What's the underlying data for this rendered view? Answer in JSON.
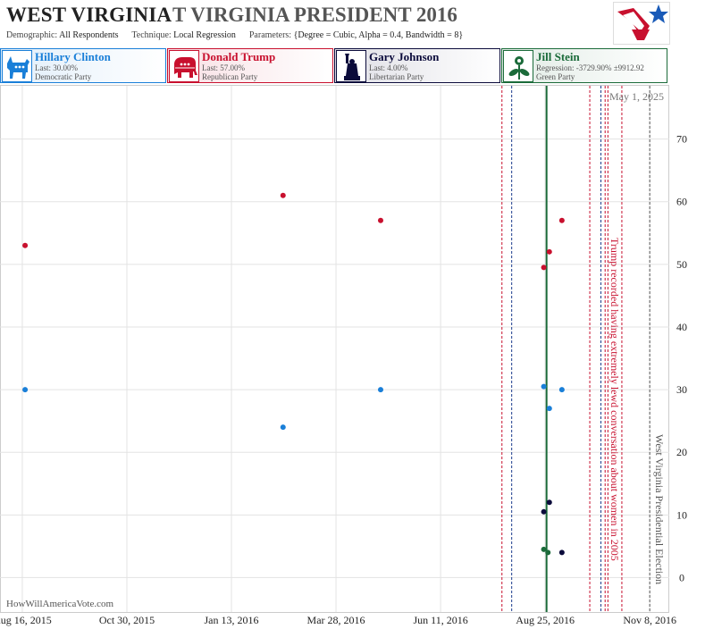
{
  "header": {
    "state": "WEST VIRGINIA",
    "race": "T VIRGINIA PRESIDENT 2016",
    "demographic_label": "Demographic:",
    "demographic_value": "All Respondents",
    "technique_label": "Technique:",
    "technique_value": "Local Regression",
    "parameters_label": "Parameters:",
    "parameters_value": "{Degree = Cubic, Alpha = 0.4, Bandwidth = 8}"
  },
  "logo_icon": "flag-star-logo-icon",
  "candidates": [
    {
      "name": "Hillary Clinton",
      "last": "Last: 30.00%",
      "party": "Democratic Party",
      "color": "#1a7fd8",
      "icon": "donkey-icon"
    },
    {
      "name": "Donald Trump",
      "last": "Last: 57.00%",
      "party": "Republican Party",
      "color": "#c8102e",
      "icon": "elephant-icon"
    },
    {
      "name": "Gary Johnson",
      "last": "Last: 4.00%",
      "party": "Libertarian Party",
      "color": "#0b0b3b",
      "icon": "statue-of-liberty-icon"
    },
    {
      "name": "Jill Stein",
      "last": "Regression: -3729.90% ±9912.92",
      "party": "Green Party",
      "color": "#1b6b3a",
      "icon": "flower-icon"
    }
  ],
  "watermark": "HowWillAmericaVote.com",
  "chart_data": {
    "type": "scatter",
    "x_axis": {
      "type": "date",
      "range": [
        "2015-07-31",
        "2016-11-22"
      ],
      "ticks": [
        {
          "date": "2015-08-16",
          "label": "Aug 16, 2015"
        },
        {
          "date": "2015-10-30",
          "label": "Oct 30, 2015"
        },
        {
          "date": "2016-01-13",
          "label": "Jan 13, 2016"
        },
        {
          "date": "2016-03-28",
          "label": "Mar 28, 2016"
        },
        {
          "date": "2016-06-11",
          "label": "Jun 11, 2016"
        },
        {
          "date": "2016-08-25",
          "label": "Aug 25, 2016"
        },
        {
          "date": "2016-11-08",
          "label": "Nov 8, 2016"
        }
      ]
    },
    "y_axis": {
      "range": [
        -5.5,
        78.5
      ],
      "ticks": [
        0,
        10,
        20,
        30,
        40,
        50,
        60,
        70
      ],
      "position": "right"
    },
    "grid": true,
    "series": [
      {
        "name": "Hillary Clinton",
        "color": "#1a7fd8",
        "points": [
          {
            "x": "2015-08-18",
            "y": 30
          },
          {
            "x": "2016-02-19",
            "y": 24
          },
          {
            "x": "2016-04-29",
            "y": 30
          },
          {
            "x": "2016-08-24",
            "y": 30.5
          },
          {
            "x": "2016-08-28",
            "y": 27
          },
          {
            "x": "2016-09-06",
            "y": 30
          }
        ]
      },
      {
        "name": "Donald Trump",
        "color": "#c8102e",
        "points": [
          {
            "x": "2015-08-18",
            "y": 53
          },
          {
            "x": "2016-02-19",
            "y": 61
          },
          {
            "x": "2016-04-29",
            "y": 57
          },
          {
            "x": "2016-08-24",
            "y": 49.5
          },
          {
            "x": "2016-08-28",
            "y": 52
          },
          {
            "x": "2016-09-06",
            "y": 57
          }
        ]
      },
      {
        "name": "Gary Johnson",
        "color": "#0b0b3b",
        "points": [
          {
            "x": "2016-08-24",
            "y": 10.5
          },
          {
            "x": "2016-08-28",
            "y": 12
          },
          {
            "x": "2016-09-06",
            "y": 4
          }
        ]
      },
      {
        "name": "Jill Stein",
        "color": "#1b6b3a",
        "points": [
          {
            "x": "2016-08-24",
            "y": 4.5
          },
          {
            "x": "2016-08-27",
            "y": 4
          }
        ]
      }
    ],
    "current_date": {
      "date": "2016-08-26",
      "color": "#1b6b3a"
    },
    "top_label": "May 1, 2025",
    "event_lines": [
      {
        "date": "2016-07-25",
        "color": "#c8102e"
      },
      {
        "date": "2016-08-01",
        "color": "#1a3b8c"
      },
      {
        "date": "2016-09-26",
        "color": "#c8102e"
      },
      {
        "date": "2016-10-04",
        "color": "#1a3b8c"
      },
      {
        "date": "2016-10-07",
        "color": "#c8102e"
      },
      {
        "date": "2016-10-09",
        "color": "#c8102e"
      },
      {
        "date": "2016-10-19",
        "color": "#c8102e"
      },
      {
        "date": "2016-11-08",
        "color": "#555555"
      }
    ],
    "annotations": [
      {
        "date": "2016-10-07",
        "text": "Trump recorded having extremely lewd conversation about women in 2005",
        "color": "#c8102e"
      },
      {
        "date": "2016-11-08",
        "text": "West Virginia Presidential Election",
        "color": "#555555"
      }
    ]
  }
}
